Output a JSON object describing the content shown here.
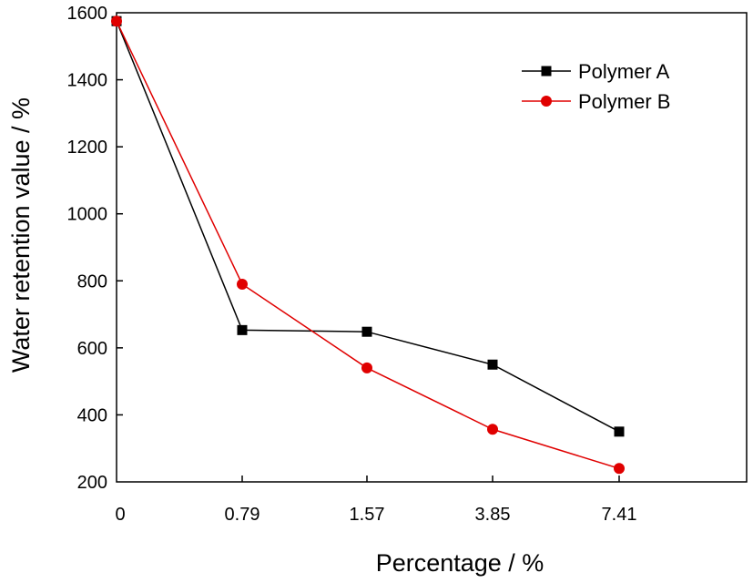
{
  "chart_data": {
    "type": "line",
    "xlabel": "Percentage / %",
    "ylabel": "Water retention value / %",
    "categories": [
      "0",
      "0.79",
      "1.57",
      "3.85",
      "7.41"
    ],
    "ylim": [
      200,
      1600
    ],
    "yticks": [
      200,
      400,
      600,
      800,
      1000,
      1200,
      1400,
      1600
    ],
    "grid": false,
    "legend_position": "top-right",
    "series": [
      {
        "name": "Polymer A",
        "color": "#000000",
        "marker": "square",
        "values": [
          1575,
          653,
          648,
          550,
          350
        ]
      },
      {
        "name": "Polymer B",
        "color": "#e00000",
        "marker": "circle",
        "values": [
          1575,
          790,
          540,
          357,
          240
        ]
      }
    ]
  }
}
